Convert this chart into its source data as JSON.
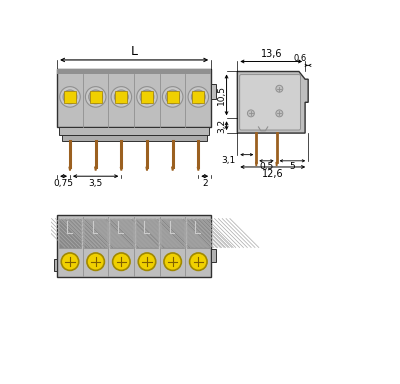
{
  "bg_color": "#ffffff",
  "gray_light": "#c8c8c8",
  "gray_mid": "#b0b0b0",
  "gray_dark": "#909090",
  "gray_body": "#bebebe",
  "yellow_color": "#f0d000",
  "brown_color": "#9b6020",
  "line_color": "#303030",
  "dim_color": "#000000",
  "n_poles": 6,
  "dim_L_label": "L",
  "dim_06": "0,6",
  "dim_136": "13,6",
  "dim_105": "10,5",
  "dim_32": "3,2",
  "dim_05": "0,5",
  "dim_31": "3,1",
  "dim_5": "5",
  "dim_126": "12,6",
  "dim_075": "0,75",
  "dim_35": "3,5",
  "dim_2": "2"
}
